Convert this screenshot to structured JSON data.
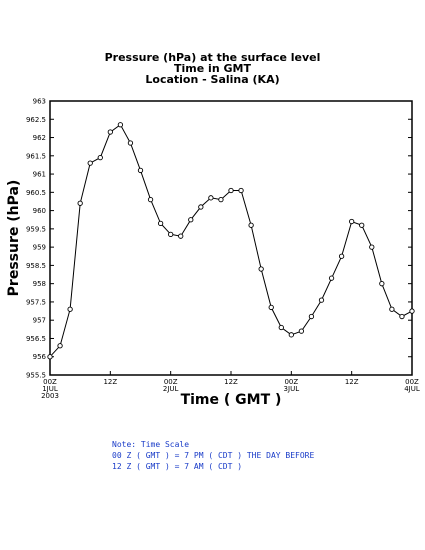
{
  "colors": {
    "line": "#000000",
    "note": "#1a3cc8",
    "background": "#ffffff"
  },
  "chart_data": {
    "type": "line",
    "title_lines": [
      "Pressure (hPa) at the surface level",
      "Time in GMT",
      "Location - Salina (KA)"
    ],
    "xlabel": "Time ( GMT )",
    "ylabel": "Pressure (hPa)",
    "ylim": [
      955.5,
      963
    ],
    "yticks": [
      955.5,
      956,
      956.5,
      957,
      957.5,
      958,
      958.5,
      959,
      959.5,
      960,
      960.5,
      961,
      961.5,
      962,
      962.5,
      963
    ],
    "ytick_labels": [
      "955.5",
      "956",
      "956.5",
      "957",
      "957.5",
      "958",
      "958.5",
      "959",
      "959.5",
      "960",
      "960.5",
      "961",
      "961.5",
      "962",
      "962.5",
      "963"
    ],
    "xlim": [
      0,
      72
    ],
    "xticks": [
      {
        "hour": 0,
        "lines": [
          "00Z",
          "1JUL",
          "2003"
        ]
      },
      {
        "hour": 12,
        "lines": [
          "12Z"
        ]
      },
      {
        "hour": 24,
        "lines": [
          "00Z",
          "2JUL"
        ]
      },
      {
        "hour": 36,
        "lines": [
          "12Z"
        ]
      },
      {
        "hour": 48,
        "lines": [
          "00Z",
          "3JUL"
        ]
      },
      {
        "hour": 60,
        "lines": [
          "12Z"
        ]
      },
      {
        "hour": 72,
        "lines": [
          "00Z",
          "4JUL"
        ]
      }
    ],
    "x": [
      0,
      2,
      4,
      6,
      8,
      10,
      12,
      14,
      16,
      18,
      20,
      22,
      24,
      26,
      28,
      30,
      32,
      34,
      36,
      38,
      40,
      42,
      44,
      46,
      48,
      50,
      52,
      54,
      56,
      58,
      60,
      62,
      64,
      66,
      68,
      70,
      72
    ],
    "values": [
      956.0,
      956.3,
      957.3,
      960.2,
      961.3,
      961.45,
      962.15,
      962.35,
      961.85,
      961.1,
      960.3,
      959.65,
      959.35,
      959.3,
      959.75,
      960.1,
      960.35,
      960.3,
      960.55,
      960.55,
      959.6,
      958.4,
      957.35,
      956.8,
      956.6,
      956.7,
      957.1,
      957.55,
      958.15,
      958.75,
      959.7,
      959.6,
      959.0,
      958.0,
      957.3,
      957.1,
      957.25
    ],
    "grid": false,
    "legend": "none"
  },
  "note": {
    "lines": [
      "Note: Time Scale",
      "00 Z ( GMT ) = 7 PM ( CDT ) THE DAY BEFORE",
      "12 Z ( GMT ) = 7 AM ( CDT )"
    ]
  }
}
